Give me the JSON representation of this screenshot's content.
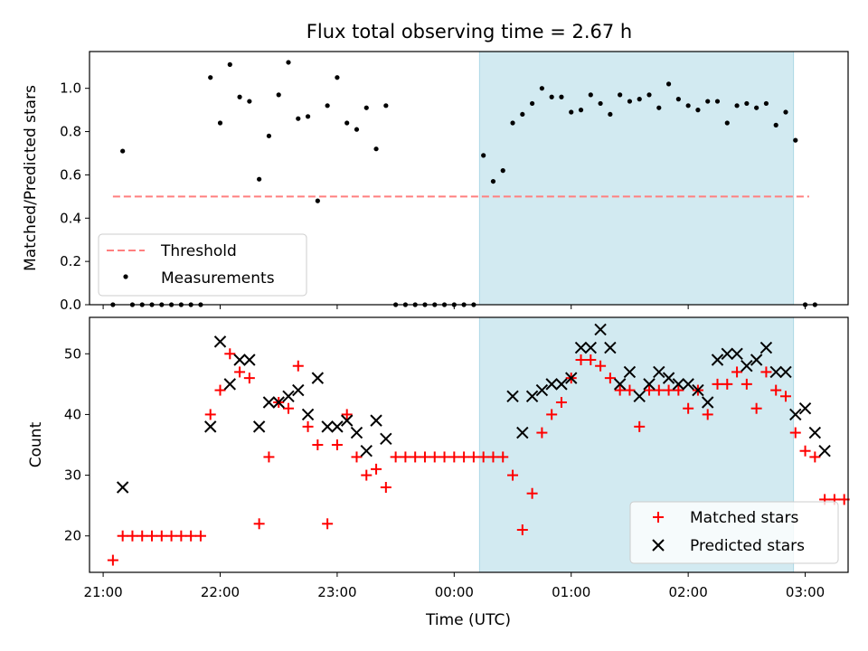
{
  "chart_data": [
    {
      "type": "scatter",
      "title": "Flux total observing time = 2.67 h",
      "ylabel": "Matched/Predicted stars",
      "xlabel": "",
      "ylim": [
        0,
        1.17
      ],
      "yticks": [
        "0.0",
        "0.2",
        "0.4",
        "0.6",
        "0.8",
        "1.0"
      ],
      "ytick_values": [
        0,
        0.2,
        0.4,
        0.6,
        0.8,
        1.0
      ],
      "shaded_span_x": [
        "00:13",
        "02:54"
      ],
      "legend_position": "lower-left",
      "threshold": {
        "name": "Threshold",
        "y": 0.5,
        "x_start": "21:05",
        "x_end": "03:02",
        "color": "#ff7f7f",
        "style": "dashed"
      },
      "series": [
        {
          "name": "Measurements",
          "color": "#000000",
          "marker": "dot",
          "points": [
            [
              "21:05",
              0
            ],
            [
              "21:10",
              0.71
            ],
            [
              "21:15",
              0
            ],
            [
              "21:20",
              0
            ],
            [
              "21:25",
              0
            ],
            [
              "21:30",
              0
            ],
            [
              "21:35",
              0
            ],
            [
              "21:40",
              0
            ],
            [
              "21:45",
              0
            ],
            [
              "21:50",
              0
            ],
            [
              "21:55",
              1.05
            ],
            [
              "22:00",
              0.84
            ],
            [
              "22:05",
              1.11
            ],
            [
              "22:10",
              0.96
            ],
            [
              "22:15",
              0.94
            ],
            [
              "22:20",
              0.58
            ],
            [
              "22:25",
              0.78
            ],
            [
              "22:30",
              0.97
            ],
            [
              "22:35",
              1.12
            ],
            [
              "22:40",
              0.86
            ],
            [
              "22:45",
              0.87
            ],
            [
              "22:50",
              0.48
            ],
            [
              "22:55",
              0.92
            ],
            [
              "23:00",
              1.05
            ],
            [
              "23:05",
              0.84
            ],
            [
              "23:10",
              0.81
            ],
            [
              "23:15",
              0.91
            ],
            [
              "23:20",
              0.72
            ],
            [
              "23:25",
              0.92
            ],
            [
              "23:30",
              0
            ],
            [
              "23:35",
              0
            ],
            [
              "23:40",
              0
            ],
            [
              "23:45",
              0
            ],
            [
              "23:50",
              0
            ],
            [
              "23:55",
              0
            ],
            [
              "00:00",
              0
            ],
            [
              "00:05",
              0
            ],
            [
              "00:10",
              0
            ],
            [
              "00:15",
              0.69
            ],
            [
              "00:20",
              0.57
            ],
            [
              "00:25",
              0.62
            ],
            [
              "00:30",
              0.84
            ],
            [
              "00:35",
              0.88
            ],
            [
              "00:40",
              0.93
            ],
            [
              "00:45",
              1.0
            ],
            [
              "00:50",
              0.96
            ],
            [
              "00:55",
              0.96
            ],
            [
              "01:00",
              0.89
            ],
            [
              "01:05",
              0.9
            ],
            [
              "01:10",
              0.97
            ],
            [
              "01:15",
              0.93
            ],
            [
              "01:20",
              0.88
            ],
            [
              "01:25",
              0.97
            ],
            [
              "01:30",
              0.94
            ],
            [
              "01:35",
              0.95
            ],
            [
              "01:40",
              0.97
            ],
            [
              "01:45",
              0.91
            ],
            [
              "01:50",
              1.02
            ],
            [
              "01:55",
              0.95
            ],
            [
              "02:00",
              0.92
            ],
            [
              "02:05",
              0.9
            ],
            [
              "02:10",
              0.94
            ],
            [
              "02:15",
              0.94
            ],
            [
              "02:20",
              0.84
            ],
            [
              "02:25",
              0.92
            ],
            [
              "02:30",
              0.93
            ],
            [
              "02:35",
              0.91
            ],
            [
              "02:40",
              0.93
            ],
            [
              "02:45",
              0.83
            ],
            [
              "02:50",
              0.89
            ],
            [
              "02:55",
              0.76
            ],
            [
              "03:00",
              0
            ],
            [
              "03:05",
              0
            ]
          ]
        }
      ],
      "legend": [
        "Threshold",
        "Measurements"
      ]
    },
    {
      "type": "scatter",
      "title": "",
      "ylabel": "Count",
      "xlabel": "Time (UTC)",
      "ylim": [
        14,
        56
      ],
      "yticks": [
        "20",
        "30",
        "40",
        "50"
      ],
      "ytick_values": [
        20,
        30,
        40,
        50
      ],
      "xticks": [
        "21:00",
        "22:00",
        "23:00",
        "00:00",
        "01:00",
        "02:00",
        "03:00"
      ],
      "xtick_values": [
        "21:00",
        "22:00",
        "23:00",
        "00:00",
        "01:00",
        "02:00",
        "03:00"
      ],
      "xlim": [
        "20:53",
        "03:22"
      ],
      "shaded_span_x": [
        "00:13",
        "02:54"
      ],
      "legend_position": "lower-right",
      "series": [
        {
          "name": "Matched stars",
          "color": "#ff0000",
          "marker": "plus",
          "points": [
            [
              "21:05",
              16
            ],
            [
              "21:10",
              20
            ],
            [
              "21:15",
              20
            ],
            [
              "21:20",
              20
            ],
            [
              "21:25",
              20
            ],
            [
              "21:30",
              20
            ],
            [
              "21:35",
              20
            ],
            [
              "21:40",
              20
            ],
            [
              "21:45",
              20
            ],
            [
              "21:50",
              20
            ],
            [
              "21:55",
              40
            ],
            [
              "22:00",
              44
            ],
            [
              "22:05",
              50
            ],
            [
              "22:10",
              47
            ],
            [
              "22:15",
              46
            ],
            [
              "22:20",
              22
            ],
            [
              "22:25",
              33
            ],
            [
              "22:30",
              42
            ],
            [
              "22:35",
              41
            ],
            [
              "22:40",
              48
            ],
            [
              "22:45",
              38
            ],
            [
              "22:50",
              35
            ],
            [
              "22:55",
              22
            ],
            [
              "23:00",
              35
            ],
            [
              "23:05",
              40
            ],
            [
              "23:10",
              33
            ],
            [
              "23:15",
              30
            ],
            [
              "23:20",
              31
            ],
            [
              "23:25",
              28
            ],
            [
              "23:30",
              33
            ],
            [
              "23:35",
              33
            ],
            [
              "23:40",
              33
            ],
            [
              "23:45",
              33
            ],
            [
              "23:50",
              33
            ],
            [
              "23:55",
              33
            ],
            [
              "00:00",
              33
            ],
            [
              "00:05",
              33
            ],
            [
              "00:10",
              33
            ],
            [
              "00:15",
              33
            ],
            [
              "00:20",
              33
            ],
            [
              "00:25",
              33
            ],
            [
              "00:30",
              30
            ],
            [
              "00:35",
              21
            ],
            [
              "00:40",
              27
            ],
            [
              "00:45",
              37
            ],
            [
              "00:50",
              40
            ],
            [
              "00:55",
              42
            ],
            [
              "01:00",
              46
            ],
            [
              "01:05",
              49
            ],
            [
              "01:10",
              49
            ],
            [
              "01:15",
              48
            ],
            [
              "01:20",
              46
            ],
            [
              "01:25",
              44
            ],
            [
              "01:30",
              44
            ],
            [
              "01:35",
              38
            ],
            [
              "01:40",
              44
            ],
            [
              "01:45",
              44
            ],
            [
              "01:50",
              44
            ],
            [
              "01:55",
              44
            ],
            [
              "02:00",
              41
            ],
            [
              "02:05",
              44
            ],
            [
              "02:10",
              40
            ],
            [
              "02:15",
              45
            ],
            [
              "02:20",
              45
            ],
            [
              "02:25",
              47
            ],
            [
              "02:30",
              45
            ],
            [
              "02:35",
              41
            ],
            [
              "02:40",
              47
            ],
            [
              "02:45",
              44
            ],
            [
              "02:50",
              43
            ],
            [
              "02:55",
              37
            ],
            [
              "03:00",
              34
            ],
            [
              "03:05",
              33
            ],
            [
              "03:10",
              26
            ],
            [
              "03:15",
              26
            ],
            [
              "03:20",
              26
            ]
          ]
        },
        {
          "name": "Predicted stars",
          "color": "#000000",
          "marker": "x",
          "points": [
            [
              "21:10",
              28
            ],
            [
              "21:55",
              38
            ],
            [
              "22:00",
              52
            ],
            [
              "22:05",
              45
            ],
            [
              "22:10",
              49
            ],
            [
              "22:15",
              49
            ],
            [
              "22:20",
              38
            ],
            [
              "22:25",
              42
            ],
            [
              "22:30",
              42
            ],
            [
              "22:35",
              43
            ],
            [
              "22:40",
              44
            ],
            [
              "22:45",
              40
            ],
            [
              "22:50",
              46
            ],
            [
              "22:55",
              38
            ],
            [
              "23:00",
              38
            ],
            [
              "23:05",
              39
            ],
            [
              "23:10",
              37
            ],
            [
              "23:15",
              34
            ],
            [
              "23:20",
              39
            ],
            [
              "23:25",
              36
            ],
            [
              "00:30",
              43
            ],
            [
              "00:35",
              37
            ],
            [
              "00:40",
              43
            ],
            [
              "00:45",
              44
            ],
            [
              "00:50",
              45
            ],
            [
              "00:55",
              45
            ],
            [
              "01:00",
              46
            ],
            [
              "01:05",
              51
            ],
            [
              "01:10",
              51
            ],
            [
              "01:15",
              54
            ],
            [
              "01:20",
              51
            ],
            [
              "01:25",
              45
            ],
            [
              "01:30",
              47
            ],
            [
              "01:35",
              43
            ],
            [
              "01:40",
              45
            ],
            [
              "01:45",
              47
            ],
            [
              "01:50",
              46
            ],
            [
              "01:55",
              45
            ],
            [
              "02:00",
              45
            ],
            [
              "02:05",
              44
            ],
            [
              "02:10",
              42
            ],
            [
              "02:15",
              49
            ],
            [
              "02:20",
              50
            ],
            [
              "02:25",
              50
            ],
            [
              "02:30",
              48
            ],
            [
              "02:35",
              49
            ],
            [
              "02:40",
              51
            ],
            [
              "02:45",
              47
            ],
            [
              "02:50",
              47
            ],
            [
              "02:55",
              40
            ],
            [
              "03:00",
              41
            ],
            [
              "03:05",
              37
            ],
            [
              "03:10",
              34
            ]
          ]
        }
      ],
      "legend": [
        "Matched stars",
        "Predicted stars"
      ]
    }
  ],
  "colors": {
    "span": "#add8e6",
    "threshold": "#ff7f7f",
    "matched": "#ff0000",
    "predicted": "#000000"
  }
}
